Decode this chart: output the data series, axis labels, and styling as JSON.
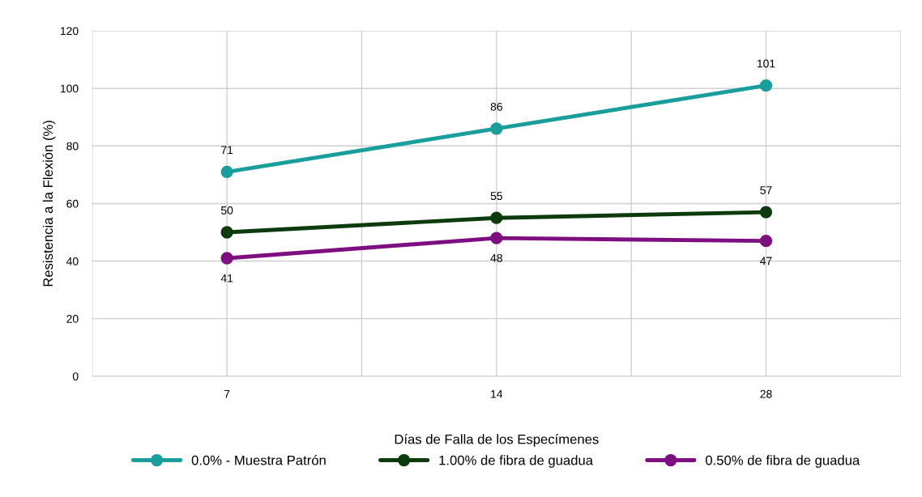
{
  "chart_data": {
    "type": "line",
    "xlabel": "Días de Falla de los Especímenes",
    "ylabel": "Resistencia a la Flexión (%)",
    "categories": [
      "7",
      "14",
      "28"
    ],
    "series": [
      {
        "name": "0.0% - Muestra Patrón",
        "color": "#1a9e9b",
        "values": [
          71,
          86,
          101
        ]
      },
      {
        "name": "1.00% de fibra de guadua",
        "color": "#0d3b0d",
        "values": [
          50,
          55,
          57
        ]
      },
      {
        "name": "0.50% de fibra de guadua",
        "color": "#7e0f80",
        "values": [
          41,
          48,
          47
        ]
      }
    ],
    "ylim": [
      0,
      120
    ],
    "yticks": [
      0,
      20,
      40,
      60,
      80,
      100,
      120
    ],
    "grid": true,
    "legend": "bottom",
    "marker": "circle",
    "line_style": "solid",
    "data_labels": true
  }
}
